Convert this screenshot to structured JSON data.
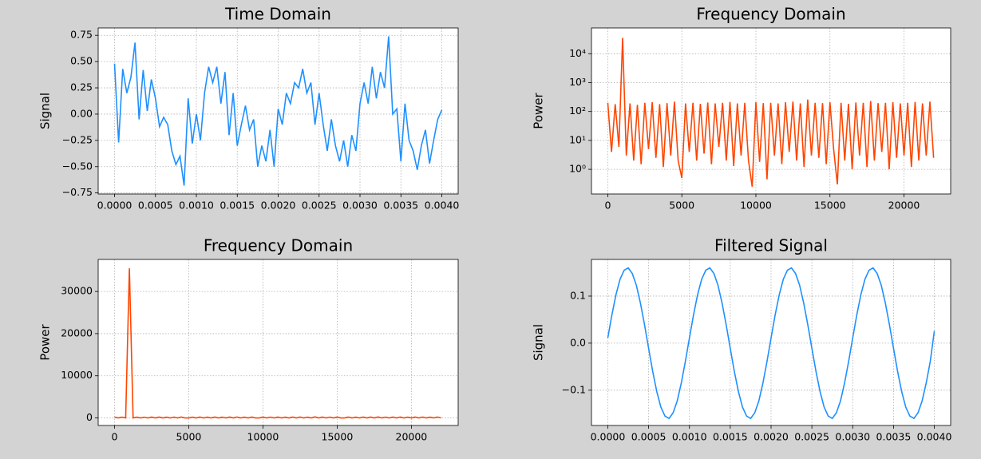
{
  "chart_data": [
    {
      "type": "line",
      "title": "Time Domain",
      "y_label": "Signal",
      "color": "#1e90ff",
      "grid": true,
      "xlim": [
        -0.0002,
        0.0042
      ],
      "ylim": [
        -0.76,
        0.82
      ],
      "xticks": [
        {
          "value": 0,
          "label": "0.0000"
        },
        {
          "value": 0.0005,
          "label": "0.0005"
        },
        {
          "value": 0.001,
          "label": "0.0010"
        },
        {
          "value": 0.0015,
          "label": "0.0015"
        },
        {
          "value": 0.002,
          "label": "0.0020"
        },
        {
          "value": 0.0025,
          "label": "0.0025"
        },
        {
          "value": 0.003,
          "label": "0.0030"
        },
        {
          "value": 0.0035,
          "label": "0.0035"
        },
        {
          "value": 0.004,
          "label": "0.0040"
        }
      ],
      "yticks": [
        {
          "value": -0.75,
          "label": "−0.75"
        },
        {
          "value": -0.5,
          "label": "−0.50"
        },
        {
          "value": -0.25,
          "label": "−0.25"
        },
        {
          "value": 0,
          "label": "0.00"
        },
        0.25,
        {
          "value": 0.5,
          "label": "0.50"
        },
        0.75
      ],
      "x": [
        0,
        5e-05,
        0.0001,
        0.00015,
        0.0002,
        0.00025,
        0.0003,
        0.00035,
        0.0004,
        0.00045,
        0.0005,
        0.00055,
        0.0006,
        0.00065,
        0.0007,
        0.00075,
        0.0008,
        0.00085,
        0.0009,
        0.00095,
        0.001,
        0.00105,
        0.0011,
        0.00115,
        0.0012,
        0.00125,
        0.0013,
        0.00135,
        0.0014,
        0.00145,
        0.0015,
        0.00155,
        0.0016,
        0.00165,
        0.0017,
        0.00175,
        0.0018,
        0.00185,
        0.0019,
        0.00195,
        0.002,
        0.00205,
        0.0021,
        0.00215,
        0.0022,
        0.00225,
        0.0023,
        0.00235,
        0.0024,
        0.00245,
        0.0025,
        0.00255,
        0.0026,
        0.00265,
        0.0027,
        0.00275,
        0.0028,
        0.00285,
        0.0029,
        0.00295,
        0.003,
        0.00305,
        0.0031,
        0.00315,
        0.0032,
        0.00325,
        0.0033,
        0.00335,
        0.0034,
        0.00345,
        0.0035,
        0.00355,
        0.0036,
        0.00365,
        0.0037,
        0.00375,
        0.0038,
        0.00385,
        0.0039,
        0.00395,
        0.004
      ],
      "values": [
        0.48,
        -0.27,
        0.43,
        0.2,
        0.35,
        0.68,
        -0.05,
        0.42,
        0.03,
        0.33,
        0.15,
        -0.12,
        -0.03,
        -0.1,
        -0.35,
        -0.48,
        -0.4,
        -0.68,
        0.15,
        -0.28,
        0.0,
        -0.25,
        0.2,
        0.45,
        0.3,
        0.45,
        0.1,
        0.4,
        -0.2,
        0.2,
        -0.3,
        -0.1,
        0.08,
        -0.15,
        -0.05,
        -0.5,
        -0.3,
        -0.45,
        -0.15,
        -0.5,
        0.05,
        -0.1,
        0.2,
        0.1,
        0.3,
        0.25,
        0.43,
        0.2,
        0.3,
        -0.1,
        0.2,
        -0.1,
        -0.35,
        -0.05,
        -0.3,
        -0.45,
        -0.25,
        -0.5,
        -0.2,
        -0.35,
        0.1,
        0.3,
        0.1,
        0.45,
        0.15,
        0.4,
        0.25,
        0.74,
        0.0,
        0.05,
        -0.45,
        0.1,
        -0.25,
        -0.35,
        -0.53,
        -0.3,
        -0.15,
        -0.47,
        -0.25,
        -0.05,
        0.04
      ]
    },
    {
      "type": "line",
      "title": "Frequency Domain",
      "y_label": "Power",
      "color": "#ff4500",
      "grid": true,
      "log_y": true,
      "xlim": [
        -1102,
        23152
      ],
      "ylim": [
        0.14,
        78000
      ],
      "xticks": [
        0,
        5000,
        10000,
        15000,
        20000
      ],
      "yticks": [
        {
          "value": 1,
          "label": "10⁰"
        },
        {
          "value": 10,
          "label": "10¹"
        },
        {
          "value": 100,
          "label": "10²"
        },
        {
          "value": 1000,
          "label": "10³"
        },
        {
          "value": 10000,
          "label": "10⁴"
        }
      ],
      "x": [
        0,
        250,
        500,
        750,
        1000,
        1250,
        1500,
        1750,
        2000,
        2250,
        2500,
        2750,
        3000,
        3250,
        3500,
        3750,
        4000,
        4250,
        4500,
        4750,
        5000,
        5250,
        5500,
        5750,
        6000,
        6250,
        6500,
        6750,
        7000,
        7250,
        7500,
        7750,
        8000,
        8250,
        8500,
        8750,
        9000,
        9250,
        9500,
        9750,
        10000,
        10250,
        10500,
        10750,
        11000,
        11250,
        11500,
        11750,
        12000,
        12250,
        12500,
        12750,
        13000,
        13250,
        13500,
        13750,
        14000,
        14250,
        14500,
        14750,
        15000,
        15250,
        15500,
        15750,
        16000,
        16250,
        16500,
        16750,
        17000,
        17250,
        17500,
        17750,
        18000,
        18250,
        18500,
        18750,
        19000,
        19250,
        19500,
        19750,
        20000,
        20250,
        20500,
        20750,
        21000,
        21250,
        21500,
        21750,
        22000
      ],
      "values": [
        200,
        4,
        180,
        6,
        35500,
        3,
        190,
        2,
        170,
        1.5,
        200,
        5,
        210,
        2.5,
        180,
        1.2,
        195,
        3,
        220,
        2,
        0.5,
        190,
        4,
        200,
        2,
        185,
        3.5,
        205,
        1.5,
        190,
        6,
        200,
        2,
        215,
        1.3,
        190,
        3,
        200,
        2,
        0.25,
        210,
        1.8,
        195,
        0.45,
        200,
        3,
        190,
        1.5,
        210,
        4,
        220,
        2,
        190,
        1.2,
        260,
        3,
        200,
        2.5,
        195,
        1.5,
        210,
        5,
        0.3,
        200,
        2,
        185,
        1,
        205,
        3,
        200,
        1.2,
        230,
        2,
        195,
        4,
        200,
        1,
        210,
        2.5,
        190,
        3,
        200,
        1.2,
        215,
        2,
        190,
        3,
        220,
        2.5
      ]
    },
    {
      "type": "line",
      "title": "Frequency Domain",
      "y_label": "Power",
      "color": "#ff4500",
      "grid": true,
      "xlim": [
        -1102,
        23152
      ],
      "ylim": [
        -1790,
        37600
      ],
      "xticks": [
        0,
        5000,
        10000,
        15000,
        20000
      ],
      "yticks": [
        0,
        10000,
        20000,
        30000
      ],
      "x": [
        0,
        250,
        500,
        750,
        1000,
        1250,
        1500,
        1750,
        2000,
        2250,
        2500,
        2750,
        3000,
        3250,
        3500,
        3750,
        4000,
        4250,
        4500,
        4750,
        5000,
        5250,
        5500,
        5750,
        6000,
        6250,
        6500,
        6750,
        7000,
        7250,
        7500,
        7750,
        8000,
        8250,
        8500,
        8750,
        9000,
        9250,
        9500,
        9750,
        10000,
        10250,
        10500,
        10750,
        11000,
        11250,
        11500,
        11750,
        12000,
        12250,
        12500,
        12750,
        13000,
        13250,
        13500,
        13750,
        14000,
        14250,
        14500,
        14750,
        15000,
        15250,
        15500,
        15750,
        16000,
        16250,
        16500,
        16750,
        17000,
        17250,
        17500,
        17750,
        18000,
        18250,
        18500,
        18750,
        19000,
        19250,
        19500,
        19750,
        20000,
        20250,
        20500,
        20750,
        21000,
        21250,
        21500,
        21750,
        22000
      ],
      "values": [
        200,
        4,
        180,
        6,
        35500,
        3,
        190,
        2,
        170,
        1.5,
        200,
        5,
        210,
        2.5,
        180,
        1.2,
        195,
        3,
        220,
        2,
        0.5,
        190,
        4,
        200,
        2,
        185,
        3.5,
        205,
        1.5,
        190,
        6,
        200,
        2,
        215,
        1.3,
        190,
        3,
        200,
        2,
        0.25,
        210,
        1.8,
        195,
        0.45,
        200,
        3,
        190,
        1.5,
        210,
        4,
        220,
        2,
        190,
        1.2,
        260,
        3,
        200,
        2.5,
        195,
        1.5,
        210,
        5,
        0.3,
        200,
        2,
        185,
        1,
        205,
        3,
        200,
        1.2,
        230,
        2,
        195,
        4,
        200,
        1,
        210,
        2.5,
        190,
        3,
        200,
        1.2,
        215,
        2,
        190,
        3,
        220,
        2.5
      ]
    },
    {
      "type": "line",
      "title": "Filtered Signal",
      "y_label": "Signal",
      "color": "#1e90ff",
      "grid": true,
      "xlim": [
        -0.0002,
        0.0042
      ],
      "ylim": [
        -0.175,
        0.178
      ],
      "xticks": [
        {
          "value": 0,
          "label": "0.0000"
        },
        {
          "value": 0.0005,
          "label": "0.0005"
        },
        {
          "value": 0.001,
          "label": "0.0010"
        },
        {
          "value": 0.0015,
          "label": "0.0015"
        },
        {
          "value": 0.002,
          "label": "0.0020"
        },
        {
          "value": 0.0025,
          "label": "0.0025"
        },
        {
          "value": 0.003,
          "label": "0.0030"
        },
        {
          "value": 0.0035,
          "label": "0.0035"
        },
        {
          "value": 0.004,
          "label": "0.0040"
        }
      ],
      "yticks": [
        {
          "value": -0.1,
          "label": "−0.1"
        },
        {
          "value": 0,
          "label": "0.0"
        },
        0.1
      ],
      "x": [
        0,
        5e-05,
        0.0001,
        0.00015,
        0.0002,
        0.00025,
        0.0003,
        0.00035,
        0.0004,
        0.00045,
        0.0005,
        0.00055,
        0.0006,
        0.00065,
        0.0007,
        0.00075,
        0.0008,
        0.00085,
        0.0009,
        0.00095,
        0.001,
        0.00105,
        0.0011,
        0.00115,
        0.0012,
        0.00125,
        0.0013,
        0.00135,
        0.0014,
        0.00145,
        0.0015,
        0.00155,
        0.0016,
        0.00165,
        0.0017,
        0.00175,
        0.0018,
        0.00185,
        0.0019,
        0.00195,
        0.002,
        0.00205,
        0.0021,
        0.00215,
        0.0022,
        0.00225,
        0.0023,
        0.00235,
        0.0024,
        0.00245,
        0.0025,
        0.00255,
        0.0026,
        0.00265,
        0.0027,
        0.00275,
        0.0028,
        0.00285,
        0.0029,
        0.00295,
        0.003,
        0.00305,
        0.0031,
        0.00315,
        0.0032,
        0.00325,
        0.0033,
        0.00335,
        0.0034,
        0.00345,
        0.0035,
        0.00355,
        0.0036,
        0.00365,
        0.0037,
        0.00375,
        0.0038,
        0.00385,
        0.0039,
        0.00395,
        0.004
      ],
      "values": [
        0.011,
        0.06,
        0.103,
        0.136,
        0.155,
        0.16,
        0.148,
        0.123,
        0.085,
        0.039,
        -0.011,
        -0.06,
        -0.103,
        -0.136,
        -0.155,
        -0.16,
        -0.148,
        -0.123,
        -0.085,
        -0.039,
        0.011,
        0.06,
        0.103,
        0.136,
        0.155,
        0.16,
        0.148,
        0.123,
        0.085,
        0.039,
        -0.011,
        -0.06,
        -0.103,
        -0.136,
        -0.155,
        -0.16,
        -0.148,
        -0.123,
        -0.085,
        -0.039,
        0.011,
        0.06,
        0.103,
        0.136,
        0.155,
        0.16,
        0.148,
        0.123,
        0.085,
        0.039,
        -0.011,
        -0.06,
        -0.103,
        -0.136,
        -0.155,
        -0.16,
        -0.148,
        -0.123,
        -0.085,
        -0.039,
        0.011,
        0.06,
        0.103,
        0.136,
        0.155,
        0.16,
        0.148,
        0.123,
        0.085,
        0.039,
        -0.011,
        -0.06,
        -0.103,
        -0.136,
        -0.155,
        -0.16,
        -0.148,
        -0.123,
        -0.085,
        -0.039,
        0.026
      ]
    }
  ]
}
